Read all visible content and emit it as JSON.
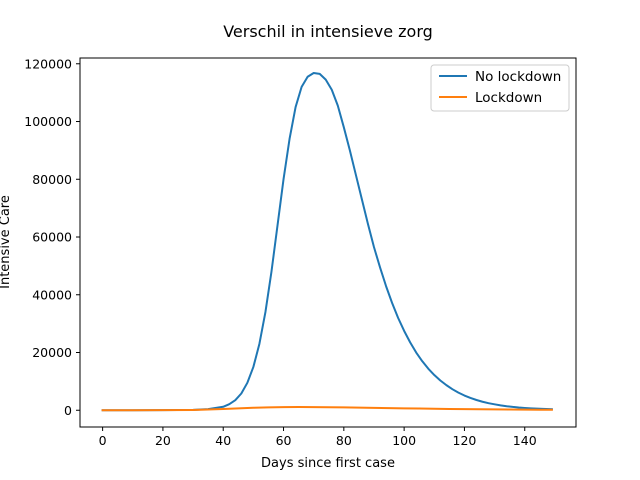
{
  "chart_data": {
    "type": "line",
    "title": "Verschil in intensieve zorg",
    "xlabel": "Days since first case",
    "ylabel": "Intensive Care",
    "xlim": [
      -7.5,
      157
    ],
    "ylim": [
      -5800,
      122000
    ],
    "xticks": [
      0,
      20,
      40,
      60,
      80,
      100,
      120,
      140
    ],
    "yticks": [
      0,
      20000,
      40000,
      60000,
      80000,
      100000,
      120000
    ],
    "grid": false,
    "legend_position": "top-right",
    "series": [
      {
        "name": "No lockdown",
        "color": "#1f77b4",
        "x": [
          0,
          10,
          20,
          30,
          35,
          40,
          42,
          44,
          46,
          48,
          50,
          52,
          54,
          56,
          58,
          60,
          62,
          64,
          66,
          68,
          70,
          72,
          74,
          76,
          78,
          80,
          82,
          84,
          86,
          88,
          90,
          92,
          94,
          96,
          98,
          100,
          102,
          104,
          106,
          108,
          110,
          112,
          114,
          116,
          118,
          120,
          122,
          124,
          126,
          128,
          130,
          132,
          134,
          136,
          138,
          140,
          142,
          144,
          146,
          149
        ],
        "values": [
          0,
          5,
          30,
          150,
          400,
          1200,
          2100,
          3500,
          5800,
          9500,
          15000,
          23000,
          34000,
          48000,
          64000,
          80000,
          94000,
          105000,
          112000,
          115500,
          116800,
          116500,
          114500,
          111000,
          105500,
          98000,
          90000,
          81500,
          73000,
          64500,
          56500,
          49500,
          43000,
          37200,
          32000,
          27500,
          23500,
          20000,
          17000,
          14400,
          12200,
          10300,
          8700,
          7300,
          6100,
          5100,
          4250,
          3550,
          2950,
          2450,
          2050,
          1700,
          1400,
          1150,
          950,
          800,
          670,
          560,
          470,
          380
        ]
      },
      {
        "name": "Lockdown",
        "color": "#ff7f0e",
        "x": [
          0,
          10,
          20,
          30,
          35,
          40,
          45,
          50,
          55,
          60,
          65,
          70,
          75,
          80,
          85,
          90,
          95,
          100,
          105,
          110,
          115,
          120,
          125,
          130,
          135,
          140,
          145,
          149
        ],
        "values": [
          0,
          5,
          25,
          110,
          250,
          450,
          650,
          850,
          1000,
          1100,
          1120,
          1100,
          1050,
          980,
          910,
          830,
          750,
          670,
          590,
          520,
          450,
          390,
          340,
          290,
          250,
          210,
          180,
          160
        ]
      }
    ]
  }
}
